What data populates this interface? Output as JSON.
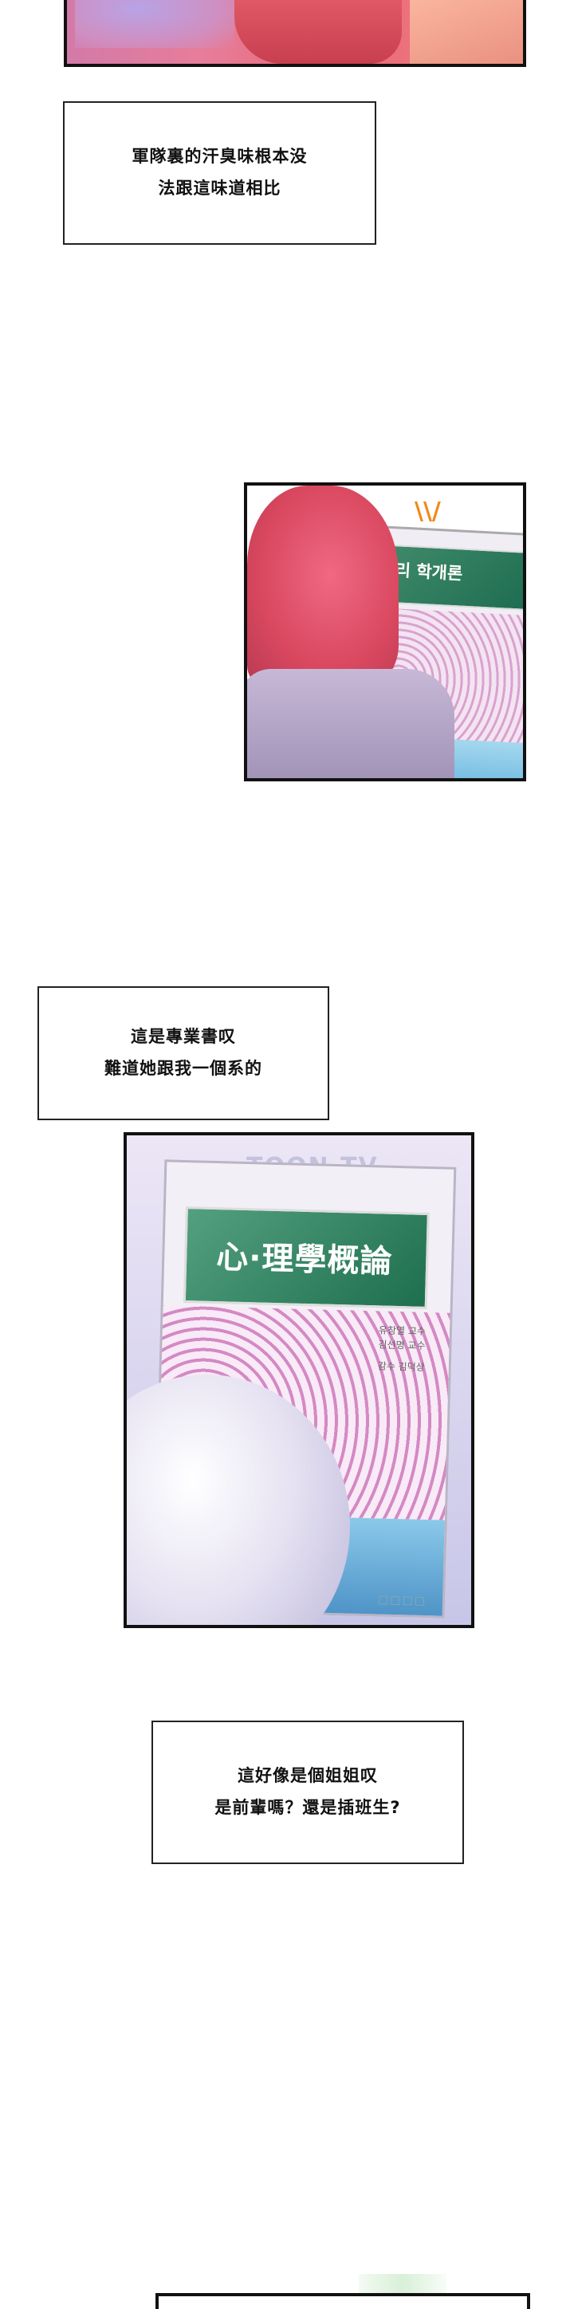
{
  "captions": [
    {
      "lines": [
        "軍隊裏的汗臭味根本没",
        "法跟這味道相比"
      ]
    },
    {
      "lines": [
        "這是專業書叹",
        "難道她跟我一個系的"
      ]
    },
    {
      "lines": [
        "這好像是個姐姐叹",
        "是前輩嗎？還是插班生?"
      ]
    }
  ],
  "panel2": {
    "book_title": "리 학개론",
    "mark": "\\\\/"
  },
  "panel3": {
    "watermark": "TOON.TV",
    "book_title": "心·理學概論",
    "authors": [
      "유창열 교수",
      "김선명 교수",
      "감수 김덕상"
    ],
    "boxes": "□□□□"
  }
}
